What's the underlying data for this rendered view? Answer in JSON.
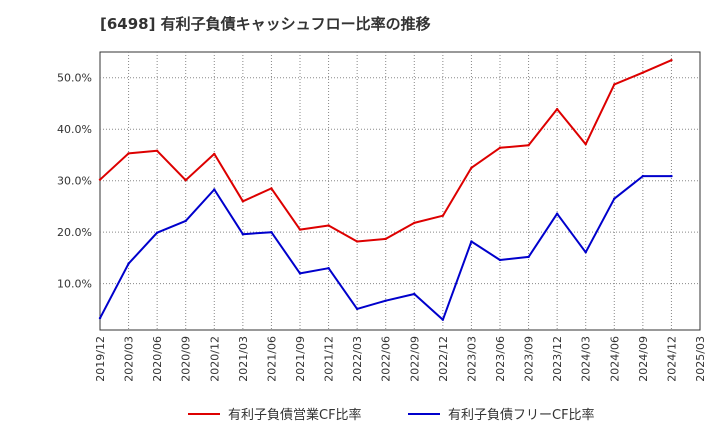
{
  "chart_data": {
    "type": "line",
    "title": "[6498]  有利子負債キャッシュフロー比率の推移",
    "xlabel": "",
    "ylabel": "",
    "y_unit": "%",
    "ylim": [
      1.0,
      55.0
    ],
    "y_ticks": [
      10,
      20,
      30,
      40,
      50
    ],
    "y_tick_labels": [
      "10.0%",
      "20.0%",
      "30.0%",
      "40.0%",
      "50.0%"
    ],
    "grid": true,
    "legend_position": "bottom",
    "x_ticks": [
      "2019/12",
      "2020/03",
      "2020/06",
      "2020/09",
      "2020/12",
      "2021/03",
      "2021/06",
      "2021/09",
      "2021/12",
      "2022/03",
      "2022/06",
      "2022/09",
      "2022/12",
      "2023/03",
      "2023/06",
      "2023/09",
      "2023/12",
      "2024/03",
      "2024/06",
      "2024/09",
      "2024/12",
      "2025/03"
    ],
    "categories": [
      "2019/12",
      "2020/03",
      "2020/06",
      "2020/09",
      "2020/12",
      "2021/03",
      "2021/06",
      "2021/09",
      "2021/12",
      "2022/03",
      "2022/06",
      "2022/09",
      "2022/12",
      "2023/03",
      "2023/06",
      "2023/09",
      "2023/12",
      "2024/03",
      "2024/06",
      "2024/09",
      "2024/12"
    ],
    "series": [
      {
        "name": "有利子負債営業CF比率",
        "color": "#dd0000",
        "values": [
          30.2,
          35.3,
          35.8,
          30.1,
          35.2,
          26.0,
          28.5,
          20.5,
          21.3,
          18.2,
          18.7,
          21.8,
          23.2,
          32.5,
          36.4,
          36.9,
          43.9,
          37.1,
          48.7,
          51.0,
          53.4
        ]
      },
      {
        "name": "有利子負債フリーCF比率",
        "color": "#0000cc",
        "values": [
          3.3,
          13.9,
          19.9,
          22.2,
          28.3,
          19.6,
          20.0,
          12.0,
          13.0,
          5.1,
          6.7,
          8.0,
          3.0,
          18.2,
          14.6,
          15.2,
          23.6,
          16.1,
          26.5,
          30.9,
          30.9
        ]
      }
    ]
  }
}
